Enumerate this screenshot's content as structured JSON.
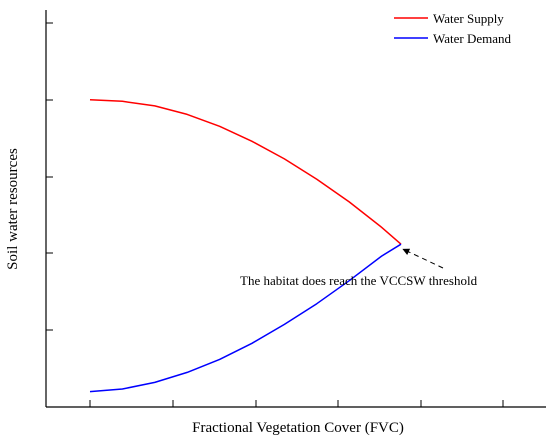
{
  "chart_data": {
    "type": "line",
    "xlabel": "Fractional Vegetation Cover (FVC)",
    "ylabel": "Soil water resources",
    "xlim": [
      0,
      1
    ],
    "ylim": [
      0,
      1
    ],
    "x_ticks_labeled": false,
    "y_ticks_labeled": false,
    "grid": false,
    "legend_position": "top-right",
    "series": [
      {
        "name": "Water Supply",
        "color": "#ff0000",
        "x": [
          0.0,
          0.1,
          0.2,
          0.3,
          0.4,
          0.5,
          0.6,
          0.7,
          0.8,
          0.9,
          0.96
        ],
        "y": [
          0.8,
          0.796,
          0.784,
          0.762,
          0.731,
          0.692,
          0.646,
          0.593,
          0.534,
          0.468,
          0.424
        ]
      },
      {
        "name": "Water Demand",
        "color": "#0000ff",
        "x": [
          0.0,
          0.1,
          0.2,
          0.3,
          0.4,
          0.5,
          0.6,
          0.7,
          0.8,
          0.9,
          0.96
        ],
        "y": [
          0.04,
          0.047,
          0.064,
          0.09,
          0.124,
          0.166,
          0.215,
          0.269,
          0.329,
          0.393,
          0.424
        ]
      }
    ],
    "annotation": {
      "text": "The habitat does reach the VCCSW threshold",
      "target_x": 0.96,
      "target_y": 0.424
    }
  }
}
